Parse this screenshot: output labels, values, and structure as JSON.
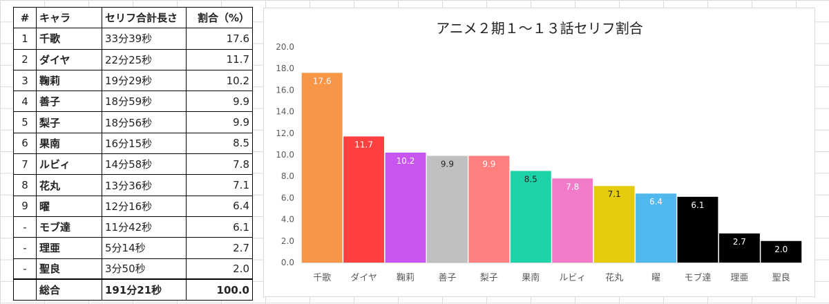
{
  "table": {
    "headers": [
      "#",
      "キャラ",
      "セリフ合計長さ",
      "割合（%）"
    ],
    "rows": [
      {
        "no": "1",
        "name": "千歌",
        "length": "33分39秒",
        "pct": "17.6"
      },
      {
        "no": "2",
        "name": "ダイヤ",
        "length": "22分25秒",
        "pct": "11.7"
      },
      {
        "no": "3",
        "name": "鞠莉",
        "length": "19分29秒",
        "pct": "10.2"
      },
      {
        "no": "4",
        "name": "善子",
        "length": "18分59秒",
        "pct": "9.9"
      },
      {
        "no": "5",
        "name": "梨子",
        "length": "18分56秒",
        "pct": "9.9"
      },
      {
        "no": "6",
        "name": "果南",
        "length": "16分15秒",
        "pct": "8.5"
      },
      {
        "no": "7",
        "name": "ルビィ",
        "length": "14分58秒",
        "pct": "7.8"
      },
      {
        "no": "8",
        "name": "花丸",
        "length": "13分36秒",
        "pct": "7.1"
      },
      {
        "no": "9",
        "name": "曜",
        "length": "12分16秒",
        "pct": "6.4"
      },
      {
        "no": "-",
        "name": "モブ達",
        "length": "11分42秒",
        "pct": "6.1"
      },
      {
        "no": "-",
        "name": "理亜",
        "length": "5分14秒",
        "pct": "2.7"
      },
      {
        "no": "-",
        "name": "聖良",
        "length": "3分50秒",
        "pct": "2.0"
      }
    ],
    "total": {
      "no": "",
      "name": "総合",
      "length": "191分21秒",
      "pct": "100.0"
    }
  },
  "chart_data": {
    "type": "bar",
    "title": "アニメ２期１～１３話セリフ割合",
    "categories": [
      "千歌",
      "ダイヤ",
      "鞠莉",
      "善子",
      "梨子",
      "果南",
      "ルビィ",
      "花丸",
      "曜",
      "モブ達",
      "理亜",
      "聖良"
    ],
    "values": [
      17.6,
      11.7,
      10.2,
      9.9,
      9.9,
      8.5,
      7.8,
      7.1,
      6.4,
      6.1,
      2.7,
      2.0
    ],
    "data_labels": [
      "17.6",
      "11.7",
      "10.2",
      "9.9",
      "9.9",
      "8.5",
      "7.8",
      "7.1",
      "6.4",
      "6.1",
      "2.7",
      "2.0"
    ],
    "colors": [
      "#f79646",
      "#ff4040",
      "#c855f0",
      "#c0c0c0",
      "#ff7f7f",
      "#1dd4a8",
      "#f379c9",
      "#e4cc0c",
      "#4fb8ec",
      "#000000",
      "#000000",
      "#000000"
    ],
    "label_colors": [
      "#ffffff",
      "#ffffff",
      "#ffffff",
      "#222222",
      "#ffffff",
      "#222222",
      "#ffffff",
      "#222222",
      "#ffffff",
      "#ffffff",
      "#ffffff",
      "#ffffff"
    ],
    "yticks": [
      "0.0",
      "2.0",
      "4.0",
      "6.0",
      "8.0",
      "10.0",
      "12.0",
      "14.0",
      "16.0",
      "18.0",
      "20.0"
    ],
    "ylim": [
      0,
      20
    ],
    "xlabel": "",
    "ylabel": "",
    "grid": false,
    "legend": "none"
  }
}
